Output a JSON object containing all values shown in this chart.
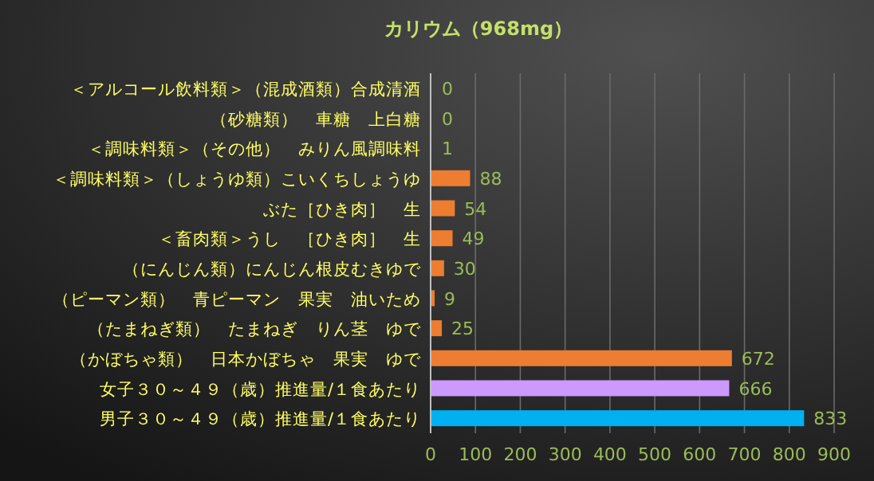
{
  "chart_data": {
    "type": "bar",
    "orientation": "horizontal",
    "title": "カリウム（968mg）",
    "categories": [
      "＜アルコール飲料類＞（混成酒類）合成清酒",
      "（砂糖類）　車糖　上白糖",
      "＜調味料類＞（その他）　みりん風調味料",
      "＜調味料類＞（しょうゆ類）こいくちしょうゆ",
      "ぶた［ひき肉］　生",
      "＜畜肉類＞うし　［ひき肉］　生",
      "（にんじん類）にんじん根皮むきゆで",
      "（ピーマン類）　青ピーマン　果実　油いため",
      "（たまねぎ類）　たまねぎ　りん茎　ゆで",
      "（かぼちゃ類）　日本かぼちゃ　果実　ゆで",
      "女子３０～４９（歳）推進量/１食あたり",
      "男子３０～４９（歳）推進量/１食あたり"
    ],
    "values": [
      0,
      0,
      1,
      88,
      54,
      49,
      30,
      9,
      25,
      672,
      666,
      833
    ],
    "colors": [
      "#ed7d31",
      "#ed7d31",
      "#ed7d31",
      "#ed7d31",
      "#ed7d31",
      "#ed7d31",
      "#ed7d31",
      "#ed7d31",
      "#ed7d31",
      "#ed7d31",
      "#cc99ff",
      "#00b0f0"
    ],
    "xlim": [
      0,
      900
    ],
    "xticks": [
      0,
      100,
      200,
      300,
      400,
      500,
      600,
      700,
      800,
      900
    ],
    "grid": "x",
    "data_labels": true
  }
}
